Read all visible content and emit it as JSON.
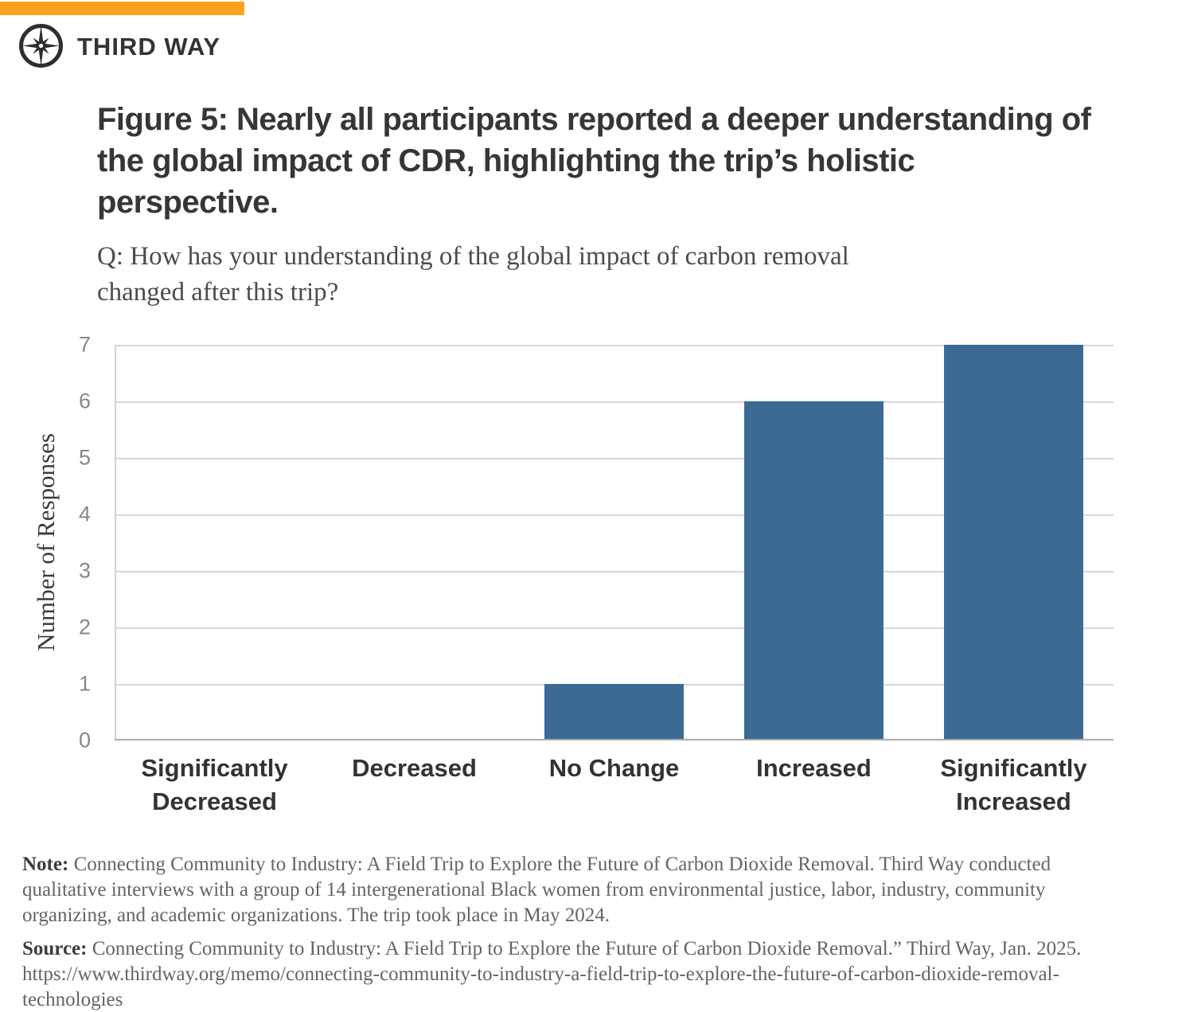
{
  "brand": {
    "name": "THIRD WAY",
    "logo_icon": "compass-icon",
    "accent_color": "#FDA320",
    "logo_color": "#2e2e2e"
  },
  "figure": {
    "title": "Figure 5: Nearly all participants reported a deeper understanding of the global impact of CDR, highlighting the trip’s holistic perspective.",
    "question": "Q: How has your understanding of the global impact of carbon removal changed after this trip?"
  },
  "chart_data": {
    "type": "bar",
    "categories": [
      "Significantly Decreased",
      "Decreased",
      "No Change",
      "Increased",
      "Significantly Increased"
    ],
    "values": [
      0,
      0,
      1,
      6,
      7
    ],
    "title": "",
    "xlabel": "",
    "ylabel": "Number of Responses",
    "yticks": [
      0,
      1,
      2,
      3,
      4,
      5,
      6,
      7
    ],
    "ylim": [
      0,
      7
    ],
    "grid": true,
    "legend": false,
    "bar_color": "#3D6A94",
    "gridline_color": "#d7d7d7"
  },
  "note": {
    "label": "Note:",
    "text": " Connecting Community to Industry: A Field Trip to Explore the Future of Carbon Dioxide Removal. Third Way conducted qualitative interviews with a group of 14 intergenerational Black women from environmental justice, labor, industry, community organizing, and academic organizations. The trip took place in May 2024."
  },
  "source": {
    "label": "Source:",
    "text": " Connecting Community to Industry: A Field Trip to Explore the Future of Carbon Dioxide Removal.” Third Way, Jan. 2025. https://www.thirdway.org/memo/connecting-community-to-industry-a-field-trip-to-explore-the-future-of-carbon-dioxide-removal-technologies"
  }
}
